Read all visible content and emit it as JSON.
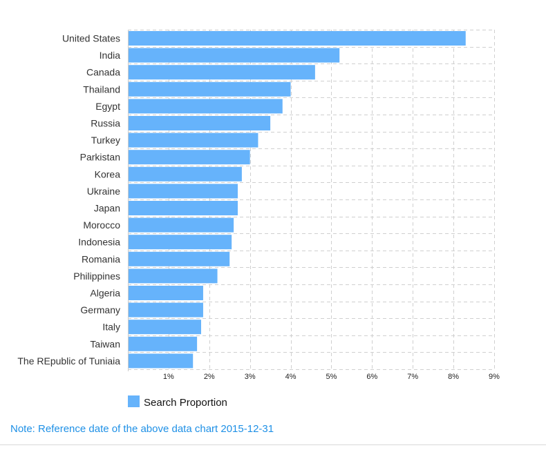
{
  "chart_data": {
    "type": "bar",
    "orientation": "horizontal",
    "categories": [
      "United States",
      "India",
      "Canada",
      "Thailand",
      "Egypt",
      "Russia",
      "Turkey",
      "Parkistan",
      "Korea",
      "Ukraine",
      "Japan",
      "Morocco",
      "Indonesia",
      "Romania",
      "Philippines",
      "Algeria",
      "Germany",
      "Italy",
      "Taiwan",
      "The REpublic of Tuniaia"
    ],
    "series": [
      {
        "name": "Search Proportion",
        "color": "#66b3fb",
        "values": [
          8.3,
          5.2,
          4.6,
          4.0,
          3.8,
          3.5,
          3.2,
          3.0,
          2.8,
          2.7,
          2.7,
          2.6,
          2.55,
          2.5,
          2.2,
          1.85,
          1.85,
          1.8,
          1.7,
          1.6
        ]
      }
    ],
    "xlim": [
      0,
      9
    ],
    "xticks": [
      "1%",
      "2%",
      "3%",
      "4%",
      "5%",
      "6%",
      "7%",
      "8%",
      "9%"
    ],
    "xtick_values": [
      1,
      2,
      3,
      4,
      5,
      6,
      7,
      8,
      9
    ],
    "grid": true,
    "legend_position": "bottom-left"
  },
  "legend": {
    "label": "Search Proportion"
  },
  "note": "Note: Reference date of the above data chart 2015-12-31"
}
